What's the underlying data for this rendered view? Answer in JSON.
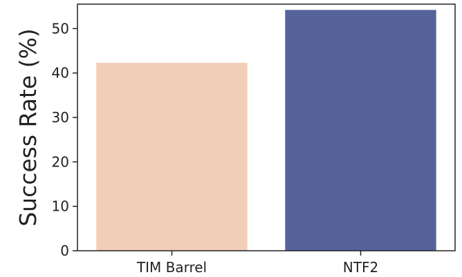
{
  "chart_data": {
    "type": "bar",
    "categories": [
      "TIM Barrel",
      "NTF2"
    ],
    "values": [
      42.3,
      54.2
    ],
    "colors": [
      "#f2cdb8",
      "#56639b"
    ],
    "title": "",
    "xlabel": "",
    "ylabel": "Success Rate (%)",
    "ylim": [
      0,
      55.5
    ],
    "yticks": [
      0,
      10,
      20,
      30,
      40,
      50
    ],
    "grid": false
  }
}
